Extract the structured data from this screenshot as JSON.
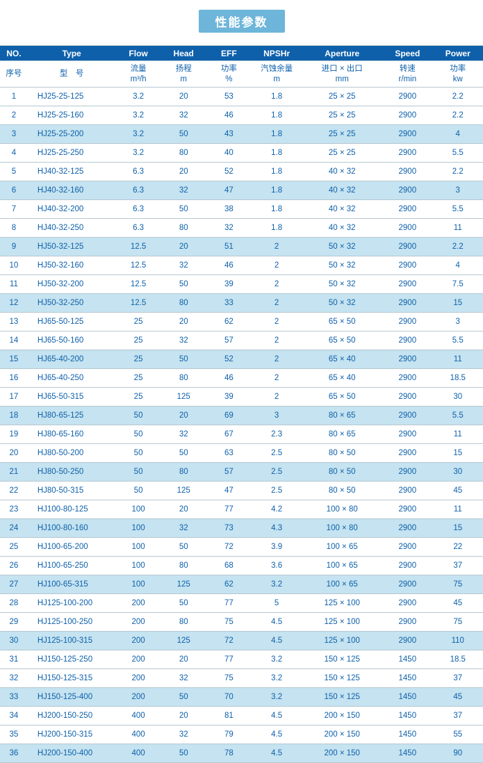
{
  "title": "性能参数",
  "header_bg": "#0e60ab",
  "header_color": "#ffffff",
  "subheader_color": "#0e60ab",
  "stripe_color": "#c5e3f0",
  "border_color": "#b6c7d1",
  "columns": {
    "no": {
      "en": "NO.",
      "cn": "序号",
      "unit": ""
    },
    "type": {
      "en": "Type",
      "cn": "型　号",
      "unit": ""
    },
    "flow": {
      "en": "Flow",
      "cn": "流量",
      "unit": "m³/h"
    },
    "head": {
      "en": "Head",
      "cn": "扬程",
      "unit": "m"
    },
    "eff": {
      "en": "EFF",
      "cn": "功率",
      "unit": "%"
    },
    "npsh": {
      "en": "NPSHr",
      "cn": "汽蚀余量",
      "unit": "m"
    },
    "ape": {
      "en": "Aperture",
      "cn": "进口 × 出口",
      "unit": "mm"
    },
    "spd": {
      "en": "Speed",
      "cn": "转速",
      "unit": "r/min"
    },
    "pwr": {
      "en": "Power",
      "cn": "功率",
      "unit": "kw"
    }
  },
  "rows": [
    {
      "no": "1",
      "type": "HJ25-25-125",
      "flow": "3.2",
      "head": "20",
      "eff": "53",
      "npsh": "1.8",
      "ape": "25 × 25",
      "spd": "2900",
      "pwr": "2.2"
    },
    {
      "no": "2",
      "type": "HJ25-25-160",
      "flow": "3.2",
      "head": "32",
      "eff": "46",
      "npsh": "1.8",
      "ape": "25 × 25",
      "spd": "2900",
      "pwr": "2.2"
    },
    {
      "no": "3",
      "type": "HJ25-25-200",
      "flow": "3.2",
      "head": "50",
      "eff": "43",
      "npsh": "1.8",
      "ape": "25 × 25",
      "spd": "2900",
      "pwr": "4"
    },
    {
      "no": "4",
      "type": "HJ25-25-250",
      "flow": "3.2",
      "head": "80",
      "eff": "40",
      "npsh": "1.8",
      "ape": "25 × 25",
      "spd": "2900",
      "pwr": "5.5"
    },
    {
      "no": "5",
      "type": "HJ40-32-125",
      "flow": "6.3",
      "head": "20",
      "eff": "52",
      "npsh": "1.8",
      "ape": "40 × 32",
      "spd": "2900",
      "pwr": "2.2"
    },
    {
      "no": "6",
      "type": "HJ40-32-160",
      "flow": "6.3",
      "head": "32",
      "eff": "47",
      "npsh": "1.8",
      "ape": "40 × 32",
      "spd": "2900",
      "pwr": "3"
    },
    {
      "no": "7",
      "type": "HJ40-32-200",
      "flow": "6.3",
      "head": "50",
      "eff": "38",
      "npsh": "1.8",
      "ape": "40 × 32",
      "spd": "2900",
      "pwr": "5.5"
    },
    {
      "no": "8",
      "type": "HJ40-32-250",
      "flow": "6.3",
      "head": "80",
      "eff": "32",
      "npsh": "1.8",
      "ape": "40 × 32",
      "spd": "2900",
      "pwr": "11"
    },
    {
      "no": "9",
      "type": "HJ50-32-125",
      "flow": "12.5",
      "head": "20",
      "eff": "51",
      "npsh": "2",
      "ape": "50 × 32",
      "spd": "2900",
      "pwr": "2.2"
    },
    {
      "no": "10",
      "type": "HJ50-32-160",
      "flow": "12.5",
      "head": "32",
      "eff": "46",
      "npsh": "2",
      "ape": "50 × 32",
      "spd": "2900",
      "pwr": "4"
    },
    {
      "no": "11",
      "type": "HJ50-32-200",
      "flow": "12.5",
      "head": "50",
      "eff": "39",
      "npsh": "2",
      "ape": "50 × 32",
      "spd": "2900",
      "pwr": "7.5"
    },
    {
      "no": "12",
      "type": "HJ50-32-250",
      "flow": "12.5",
      "head": "80",
      "eff": "33",
      "npsh": "2",
      "ape": "50 × 32",
      "spd": "2900",
      "pwr": "15"
    },
    {
      "no": "13",
      "type": "HJ65-50-125",
      "flow": "25",
      "head": "20",
      "eff": "62",
      "npsh": "2",
      "ape": "65 × 50",
      "spd": "2900",
      "pwr": "3"
    },
    {
      "no": "14",
      "type": "HJ65-50-160",
      "flow": "25",
      "head": "32",
      "eff": "57",
      "npsh": "2",
      "ape": "65 × 50",
      "spd": "2900",
      "pwr": "5.5"
    },
    {
      "no": "15",
      "type": "HJ65-40-200",
      "flow": "25",
      "head": "50",
      "eff": "52",
      "npsh": "2",
      "ape": "65 × 40",
      "spd": "2900",
      "pwr": "11"
    },
    {
      "no": "16",
      "type": "HJ65-40-250",
      "flow": "25",
      "head": "80",
      "eff": "46",
      "npsh": "2",
      "ape": "65 × 40",
      "spd": "2900",
      "pwr": "18.5"
    },
    {
      "no": "17",
      "type": "HJ65-50-315",
      "flow": "25",
      "head": "125",
      "eff": "39",
      "npsh": "2",
      "ape": "65 × 50",
      "spd": "2900",
      "pwr": "30"
    },
    {
      "no": "18",
      "type": "HJ80-65-125",
      "flow": "50",
      "head": "20",
      "eff": "69",
      "npsh": "3",
      "ape": "80 × 65",
      "spd": "2900",
      "pwr": "5.5"
    },
    {
      "no": "19",
      "type": "HJ80-65-160",
      "flow": "50",
      "head": "32",
      "eff": "67",
      "npsh": "2.3",
      "ape": "80 × 65",
      "spd": "2900",
      "pwr": "11"
    },
    {
      "no": "20",
      "type": "HJ80-50-200",
      "flow": "50",
      "head": "50",
      "eff": "63",
      "npsh": "2.5",
      "ape": "80 × 50",
      "spd": "2900",
      "pwr": "15"
    },
    {
      "no": "21",
      "type": "HJ80-50-250",
      "flow": "50",
      "head": "80",
      "eff": "57",
      "npsh": "2.5",
      "ape": "80 × 50",
      "spd": "2900",
      "pwr": "30"
    },
    {
      "no": "22",
      "type": "HJ80-50-315",
      "flow": "50",
      "head": "125",
      "eff": "47",
      "npsh": "2.5",
      "ape": "80 × 50",
      "spd": "2900",
      "pwr": "45"
    },
    {
      "no": "23",
      "type": "HJ100-80-125",
      "flow": "100",
      "head": "20",
      "eff": "77",
      "npsh": "4.2",
      "ape": "100 × 80",
      "spd": "2900",
      "pwr": "11"
    },
    {
      "no": "24",
      "type": "HJ100-80-160",
      "flow": "100",
      "head": "32",
      "eff": "73",
      "npsh": "4.3",
      "ape": "100 × 80",
      "spd": "2900",
      "pwr": "15"
    },
    {
      "no": "25",
      "type": "HJ100-65-200",
      "flow": "100",
      "head": "50",
      "eff": "72",
      "npsh": "3.9",
      "ape": "100 × 65",
      "spd": "2900",
      "pwr": "22"
    },
    {
      "no": "26",
      "type": "HJ100-65-250",
      "flow": "100",
      "head": "80",
      "eff": "68",
      "npsh": "3.6",
      "ape": "100 × 65",
      "spd": "2900",
      "pwr": "37"
    },
    {
      "no": "27",
      "type": "HJ100-65-315",
      "flow": "100",
      "head": "125",
      "eff": "62",
      "npsh": "3.2",
      "ape": "100 × 65",
      "spd": "2900",
      "pwr": "75"
    },
    {
      "no": "28",
      "type": "HJ125-100-200",
      "flow": "200",
      "head": "50",
      "eff": "77",
      "npsh": "5",
      "ape": "125 × 100",
      "spd": "2900",
      "pwr": "45"
    },
    {
      "no": "29",
      "type": "HJ125-100-250",
      "flow": "200",
      "head": "80",
      "eff": "75",
      "npsh": "4.5",
      "ape": "125 × 100",
      "spd": "2900",
      "pwr": "75"
    },
    {
      "no": "30",
      "type": "HJ125-100-315",
      "flow": "200",
      "head": "125",
      "eff": "72",
      "npsh": "4.5",
      "ape": "125 × 100",
      "spd": "2900",
      "pwr": "110"
    },
    {
      "no": "31",
      "type": "HJ150-125-250",
      "flow": "200",
      "head": "20",
      "eff": "77",
      "npsh": "3.2",
      "ape": "150 × 125",
      "spd": "1450",
      "pwr": "18.5"
    },
    {
      "no": "32",
      "type": "HJ150-125-315",
      "flow": "200",
      "head": "32",
      "eff": "75",
      "npsh": "3.2",
      "ape": "150 × 125",
      "spd": "1450",
      "pwr": "37"
    },
    {
      "no": "33",
      "type": "HJ150-125-400",
      "flow": "200",
      "head": "50",
      "eff": "70",
      "npsh": "3.2",
      "ape": "150 × 125",
      "spd": "1450",
      "pwr": "45"
    },
    {
      "no": "34",
      "type": "HJ200-150-250",
      "flow": "400",
      "head": "20",
      "eff": "81",
      "npsh": "4.5",
      "ape": "200 × 150",
      "spd": "1450",
      "pwr": "37"
    },
    {
      "no": "35",
      "type": "HJ200-150-315",
      "flow": "400",
      "head": "32",
      "eff": "79",
      "npsh": "4.5",
      "ape": "200 × 150",
      "spd": "1450",
      "pwr": "55"
    },
    {
      "no": "36",
      "type": "HJ200-150-400",
      "flow": "400",
      "head": "50",
      "eff": "78",
      "npsh": "4.5",
      "ape": "200 × 150",
      "spd": "1450",
      "pwr": "90"
    }
  ]
}
